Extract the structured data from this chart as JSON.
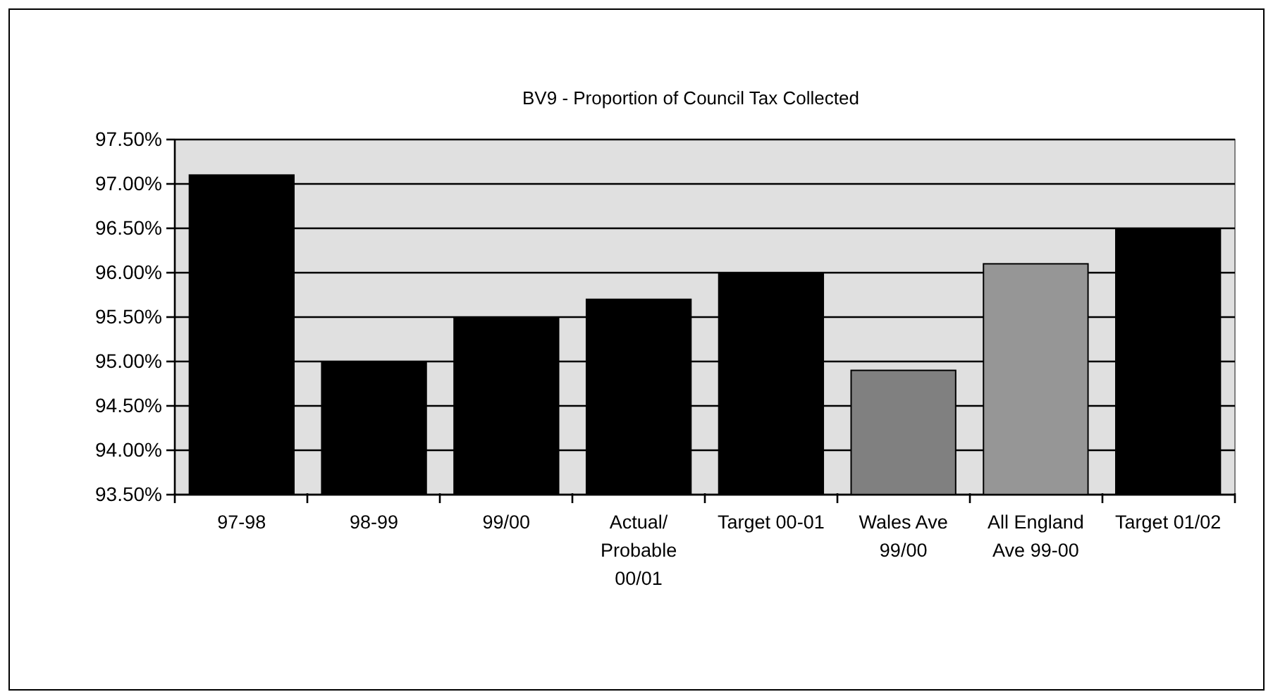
{
  "chart_data": {
    "type": "bar",
    "title": "BV9 - Proportion of Council Tax Collected",
    "categories": [
      "97-98",
      "98-99",
      "99/00",
      "Actual/ Probable 00/01",
      "Target 00-01",
      "Wales Ave 99/00",
      "All England Ave 99-00",
      "Target 01/02"
    ],
    "values": [
      97.1,
      95.0,
      95.5,
      95.7,
      96.0,
      94.9,
      96.1,
      96.5
    ],
    "colors": [
      "#000000",
      "#000000",
      "#000000",
      "#000000",
      "#000000",
      "#808080",
      "#969696",
      "#000000"
    ],
    "ylim": [
      93.5,
      97.5
    ],
    "yticks": [
      {
        "value": 93.5,
        "label": "93.50%"
      },
      {
        "value": 94.0,
        "label": "94.00%"
      },
      {
        "value": 94.5,
        "label": "94.50%"
      },
      {
        "value": 95.0,
        "label": "95.00%"
      },
      {
        "value": 95.5,
        "label": "95.50%"
      },
      {
        "value": 96.0,
        "label": "96.00%"
      },
      {
        "value": 96.5,
        "label": "96.50%"
      },
      {
        "value": 97.0,
        "label": "97.00%"
      },
      {
        "value": 97.5,
        "label": "97.50%"
      }
    ],
    "grid": "y"
  }
}
